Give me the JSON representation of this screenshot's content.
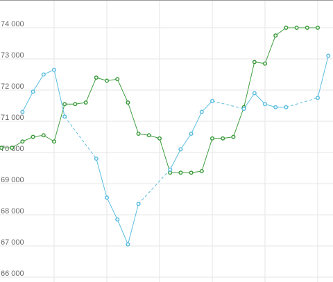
{
  "chart_data": {
    "type": "line",
    "categories": [
      null,
      null,
      null,
      null,
      null,
      null,
      null,
      null,
      null,
      null,
      null,
      null,
      null,
      null,
      null,
      null,
      null,
      null,
      null,
      null,
      null,
      null,
      null,
      null,
      null,
      null,
      null,
      null,
      null,
      null,
      null,
      null
    ],
    "series": [
      {
        "color": "#3d9c3d",
        "values": [
          70150,
          70150,
          70350,
          70500,
          70550,
          70350,
          71550,
          71550,
          71600,
          72400,
          72300,
          72350,
          71600,
          70600,
          70550,
          70450,
          69350,
          69350,
          69350,
          69400,
          70450,
          70450,
          70500,
          71450,
          72900,
          72850,
          73750,
          74000,
          74000,
          74000,
          74000,
          null
        ]
      },
      {
        "color": "#5bbde0",
        "values": [
          null,
          null,
          71300,
          71950,
          72500,
          72650,
          71150,
          null,
          null,
          69800,
          68550,
          67850,
          67050,
          68350,
          null,
          null,
          69450,
          70100,
          70600,
          71300,
          71650,
          null,
          null,
          71400,
          71900,
          71550,
          71450,
          71450,
          null,
          null,
          71750,
          73100
        ]
      }
    ],
    "ylim": [
      66000,
      74900
    ],
    "yticks": [
      {
        "value": 66000,
        "label": "66 000"
      },
      {
        "value": 67000,
        "label": "67 000"
      },
      {
        "value": 68000,
        "label": "68 000"
      },
      {
        "value": 69000,
        "label": "69 000"
      },
      {
        "value": 70000,
        "label": "70 000"
      },
      {
        "value": 71000,
        "label": "71 000"
      },
      {
        "value": 72000,
        "label": "72 000"
      },
      {
        "value": 73000,
        "label": "73 000"
      },
      {
        "value": 74000,
        "label": "74 000"
      }
    ],
    "grid": true
  }
}
